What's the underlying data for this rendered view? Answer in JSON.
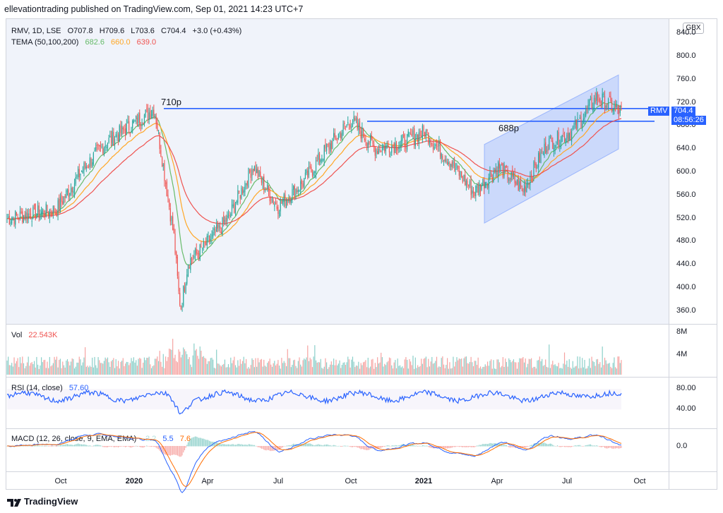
{
  "header": "ellevationtrading published on TradingView.com, Sep 01, 2021 14:23 UTC+7",
  "currency": "GBX",
  "footer_brand": "TradingView",
  "colors": {
    "up": "#26a69a",
    "down": "#ef5350",
    "blue": "#2962ff",
    "tema50": "#66bb6a",
    "tema100": "#ffa726",
    "tema200": "#ef5350",
    "price_tag": "#2962ff"
  },
  "legend": {
    "symbol": "RMV, 1D, LSE",
    "o": "O707.8",
    "h": "H709.6",
    "l": "L703.6",
    "c": "C704.4",
    "chg": "+3.0 (+0.43%)",
    "tema_label": "TEMA (50,100,200)",
    "tema50": "682.6",
    "tema100": "660.0",
    "tema200": "639.0",
    "vol_label": "Vol",
    "vol_value": "22.543K",
    "rsi_label": "RSI (14, close)",
    "rsi_value": "57.60",
    "macd_label": "MACD (12, 26, close, 9, EMA, EMA)",
    "macd_hist": "-2.2",
    "macd_line": "5.5",
    "macd_signal": "7.6"
  },
  "price_axis": [
    "840.0",
    "800.0",
    "760.0",
    "720.0",
    "680.0",
    "640.0",
    "600.0",
    "560.0",
    "520.0",
    "480.0",
    "440.0",
    "400.0",
    "360.0"
  ],
  "vol_axis": [
    "8M",
    "4M"
  ],
  "rsi_axis": [
    "80.00",
    "40.00"
  ],
  "macd_axis": [
    "0.0"
  ],
  "time_axis": [
    {
      "label": "Oct",
      "bold": false
    },
    {
      "label": "2020",
      "bold": true
    },
    {
      "label": "Apr",
      "bold": false
    },
    {
      "label": "Jul",
      "bold": false
    },
    {
      "label": "Oct",
      "bold": false
    },
    {
      "label": "2021",
      "bold": true
    },
    {
      "label": "Apr",
      "bold": false
    },
    {
      "label": "Jul",
      "bold": false
    },
    {
      "label": "Oct",
      "bold": false
    }
  ],
  "tags": {
    "symbol": "RMV",
    "price": "704.4",
    "countdown": "08:56:26"
  },
  "annotations": {
    "resistance_high": "710p",
    "resistance_low": "688p"
  },
  "chart_data": {
    "type": "candlestick",
    "symbol": "RMV",
    "ylim": [
      350,
      850
    ],
    "levels": [
      {
        "label": "710p",
        "value": 710
      },
      {
        "label": "688p",
        "value": 688
      }
    ],
    "close_path": [
      {
        "x": "2019-08",
        "y": 520
      },
      {
        "x": "2019-09",
        "y": 528
      },
      {
        "x": "2019-10",
        "y": 535
      },
      {
        "x": "2019-11",
        "y": 600
      },
      {
        "x": "2019-12",
        "y": 650
      },
      {
        "x": "2020-01",
        "y": 680
      },
      {
        "x": "2020-02",
        "y": 710
      },
      {
        "x": "2020-03",
        "y": 430
      },
      {
        "x": "2020-04",
        "y": 470
      },
      {
        "x": "2020-05",
        "y": 520
      },
      {
        "x": "2020-06",
        "y": 610
      },
      {
        "x": "2020-07",
        "y": 540
      },
      {
        "x": "2020-08",
        "y": 580
      },
      {
        "x": "2020-09",
        "y": 640
      },
      {
        "x": "2020-10",
        "y": 690
      },
      {
        "x": "2020-11",
        "y": 640
      },
      {
        "x": "2020-12",
        "y": 650
      },
      {
        "x": "2021-01",
        "y": 670
      },
      {
        "x": "2021-02",
        "y": 620
      },
      {
        "x": "2021-03",
        "y": 565
      },
      {
        "x": "2021-04",
        "y": 610
      },
      {
        "x": "2021-05",
        "y": 570
      },
      {
        "x": "2021-06",
        "y": 650
      },
      {
        "x": "2021-07",
        "y": 670
      },
      {
        "x": "2021-08",
        "y": 730
      },
      {
        "x": "2021-09",
        "y": 704
      }
    ],
    "tema": [
      {
        "name": "TEMA 50",
        "last": 682.6
      },
      {
        "name": "TEMA 100",
        "last": 660.0
      },
      {
        "name": "TEMA 200",
        "last": 639.0
      }
    ],
    "rsi": {
      "last": 57.6,
      "ylim": [
        20,
        90
      ]
    },
    "macd": {
      "macd": 5.5,
      "signal": 7.6,
      "hist": -2.2
    }
  }
}
